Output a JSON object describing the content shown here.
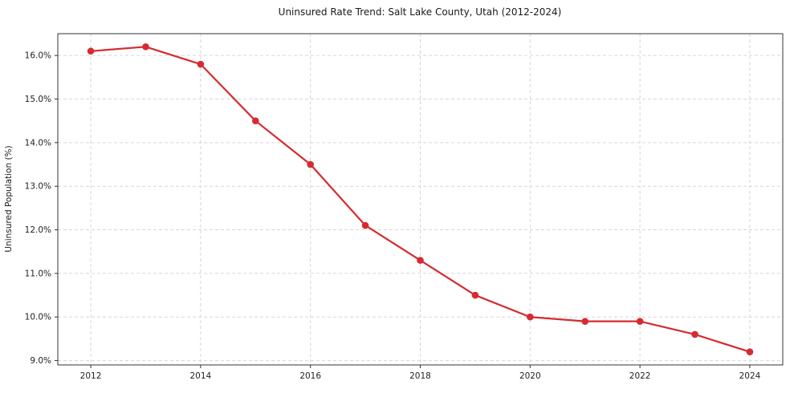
{
  "chart_data": {
    "type": "line",
    "title": "Uninsured Rate Trend: Salt Lake County, Utah (2012-2024)",
    "xlabel": "",
    "ylabel": "Uninsured Population (%)",
    "series_name": "Uninsured rate",
    "x": [
      2012,
      2013,
      2014,
      2015,
      2016,
      2017,
      2018,
      2019,
      2020,
      2021,
      2022,
      2023,
      2024
    ],
    "values": [
      16.1,
      16.2,
      15.8,
      14.5,
      13.5,
      12.1,
      11.3,
      10.5,
      10.0,
      9.9,
      9.9,
      9.6,
      9.2
    ],
    "xlim": [
      2011.4,
      2024.6
    ],
    "ylim": [
      8.9,
      16.5
    ],
    "xticks": [
      {
        "value": 2012,
        "label": "2012"
      },
      {
        "value": 2014,
        "label": "2014"
      },
      {
        "value": 2016,
        "label": "2016"
      },
      {
        "value": 2018,
        "label": "2018"
      },
      {
        "value": 2020,
        "label": "2020"
      },
      {
        "value": 2022,
        "label": "2022"
      },
      {
        "value": 2024,
        "label": "2024"
      }
    ],
    "yticks": [
      {
        "value": 9.0,
        "label": "9.0%"
      },
      {
        "value": 10.0,
        "label": "10.0%"
      },
      {
        "value": 11.0,
        "label": "11.0%"
      },
      {
        "value": 12.0,
        "label": "12.0%"
      },
      {
        "value": 13.0,
        "label": "13.0%"
      },
      {
        "value": 14.0,
        "label": "14.0%"
      },
      {
        "value": 15.0,
        "label": "15.0%"
      },
      {
        "value": 16.0,
        "label": "16.0%"
      }
    ],
    "grid": true,
    "legend": "none",
    "line_color": "#d62b30",
    "marker": "circle",
    "marker_color": "#d62b30",
    "grid_color": "#d6d6d6",
    "background": "#ffffff"
  }
}
